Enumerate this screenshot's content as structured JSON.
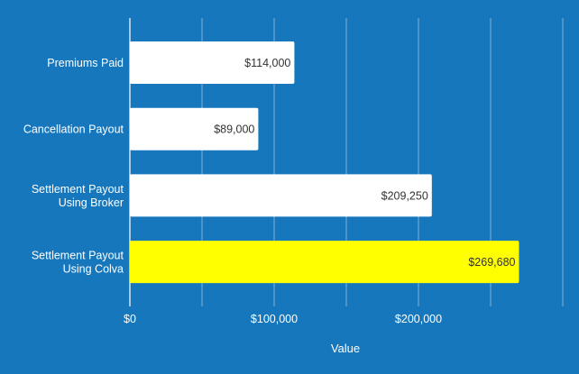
{
  "colors": {
    "background": "#1677bd",
    "bar_default": "#ffffff",
    "bar_highlight": "#ffff00",
    "gridline": "#7fb0d8",
    "axis_text": "#ffffff",
    "value_text": "#333333"
  },
  "chart_data": {
    "type": "bar",
    "orientation": "horizontal",
    "categories": [
      [
        "Premiums Paid"
      ],
      [
        "Cancellation Payout"
      ],
      [
        "Settlement Payout",
        "Using Broker"
      ],
      [
        "Settlement Payout",
        "Using Colva"
      ]
    ],
    "values": [
      114000,
      89000,
      209250,
      269680
    ],
    "value_labels": [
      "$114,000",
      "$89,000",
      "$209,250",
      "$269,680"
    ],
    "highlight_index": 3,
    "xlabel": "Value",
    "xlim": [
      0,
      300000
    ],
    "xticks": [
      0,
      100000,
      200000
    ],
    "xtick_labels": [
      "$0",
      "$100,000",
      "$200,000"
    ],
    "grid": true,
    "legend": "none"
  }
}
